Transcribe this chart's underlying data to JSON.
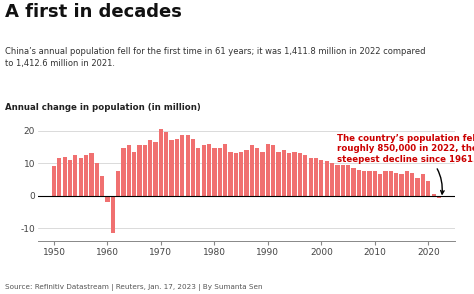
{
  "title": "A first in decades",
  "subtitle": "China’s annual population fell for the first time in 61 years; it was 1,411.8 million in 2022 compared\nto 1,412.6 million in 2021.",
  "ylabel": "Annual change in population (in million)",
  "source": "Source: Refinitiv Datastream | Reuters, Jan. 17, 2023 | By Sumanta Sen",
  "annotation": "The country’s population fell by\nroughly 850,000 in 2022, the\nsteepest decline since 1961.",
  "bar_color": "#F07070",
  "annotation_color": "#CC0000",
  "background_color": "#FFFFFF",
  "years": [
    1950,
    1951,
    1952,
    1953,
    1954,
    1955,
    1956,
    1957,
    1958,
    1959,
    1960,
    1961,
    1962,
    1963,
    1964,
    1965,
    1966,
    1967,
    1968,
    1969,
    1970,
    1971,
    1972,
    1973,
    1974,
    1975,
    1976,
    1977,
    1978,
    1979,
    1980,
    1981,
    1982,
    1983,
    1984,
    1985,
    1986,
    1987,
    1988,
    1989,
    1990,
    1991,
    1992,
    1993,
    1994,
    1995,
    1996,
    1997,
    1998,
    1999,
    2000,
    2001,
    2002,
    2003,
    2004,
    2005,
    2006,
    2007,
    2008,
    2009,
    2010,
    2011,
    2012,
    2013,
    2014,
    2015,
    2016,
    2017,
    2018,
    2019,
    2020,
    2021,
    2022
  ],
  "values": [
    9.0,
    11.5,
    12.0,
    11.0,
    12.5,
    11.5,
    12.5,
    13.0,
    10.0,
    6.0,
    -2.0,
    -11.5,
    7.5,
    14.5,
    15.5,
    13.5,
    15.5,
    15.5,
    17.0,
    16.5,
    20.5,
    19.5,
    17.0,
    17.5,
    18.5,
    18.5,
    17.5,
    14.5,
    15.5,
    16.0,
    14.5,
    14.5,
    16.0,
    13.5,
    13.0,
    13.5,
    14.0,
    15.5,
    14.5,
    13.5,
    16.0,
    15.5,
    13.5,
    14.0,
    13.0,
    13.5,
    13.0,
    12.5,
    11.5,
    11.5,
    11.0,
    10.5,
    10.0,
    9.5,
    9.5,
    9.5,
    8.5,
    8.0,
    7.5,
    7.5,
    7.5,
    6.5,
    7.5,
    7.5,
    7.0,
    6.5,
    7.5,
    7.0,
    5.5,
    6.5,
    4.5,
    0.5,
    -0.85
  ],
  "ylim": [
    -14,
    24
  ],
  "yticks": [
    -10,
    0,
    10,
    20
  ],
  "xlim": [
    1947,
    2025
  ],
  "decade_ticks": [
    1950,
    1960,
    1970,
    1980,
    1990,
    2000,
    2010,
    2020
  ]
}
